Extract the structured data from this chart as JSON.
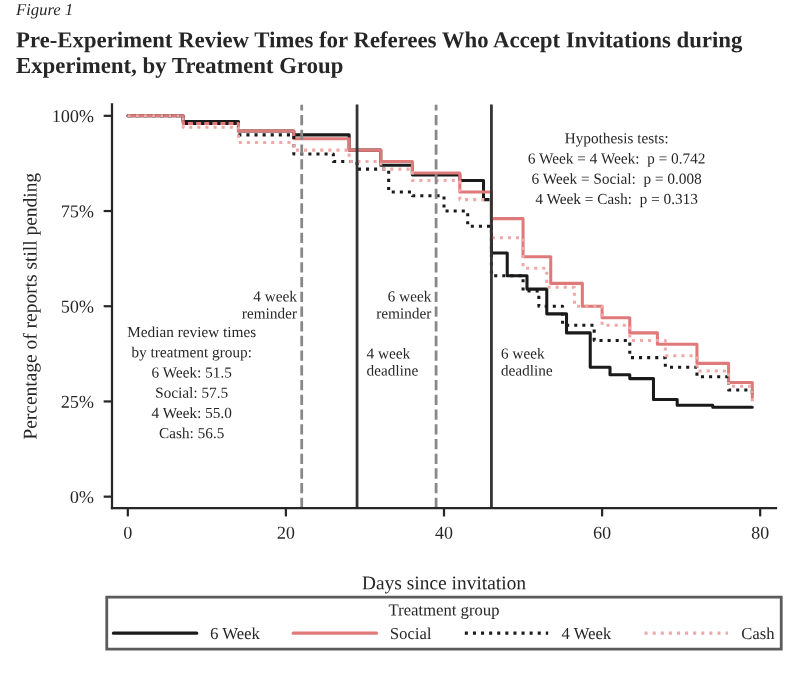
{
  "chart_data": {
    "type": "step",
    "title": "Pre-Experiment Review Times for Referees Who Accept Invitations during\nExperiment, by Treatment Group",
    "xlabel": "Days since invitation",
    "ylabel": "Percentage of reports still pending",
    "legend_title": "Treatment group",
    "annotations": [
      "Figure 1",
      "Hypothesis tests:\n6 Week = 4 Week:  p = 0.742\n6 Week = Social:  p = 0.008\n4 Week = Cash:  p = 0.313",
      "Median review times\nby treatment group:\n6 Week: 51.5\nSocial: 57.5\n4 Week: 55.0\nCash: 56.5"
    ],
    "series": [
      {
        "name": "6 Week",
        "color": "#1a1a1a",
        "line_style": "solid",
        "x": [
          0,
          7,
          14,
          21,
          28,
          32,
          36,
          42,
          45,
          46,
          48,
          50.5,
          53,
          55.5,
          58.5,
          61,
          63.5,
          66.5,
          69.5,
          74,
          79
        ],
        "values": [
          100,
          98.5,
          96,
          95,
          91,
          87,
          84.5,
          83,
          78,
          64,
          58,
          54.5,
          48,
          43,
          34,
          32,
          31,
          25.5,
          24,
          23.5,
          23.5
        ]
      },
      {
        "name": "Social",
        "color": "#e07a7a",
        "line_style": "solid",
        "x": [
          0,
          7,
          14,
          21,
          28,
          32,
          36,
          42,
          46,
          50,
          53.5,
          57.5,
          60,
          63.5,
          67,
          72,
          76,
          79
        ],
        "values": [
          100,
          98,
          96,
          94,
          91,
          88,
          85,
          80,
          73,
          63,
          56,
          50,
          47,
          43,
          40,
          35,
          30,
          26
        ]
      },
      {
        "name": "4 Week",
        "color": "#1a1a1a",
        "line_style": "dotted",
        "x": [
          0,
          7,
          14,
          21,
          26,
          29,
          33,
          36,
          40,
          43,
          46,
          50,
          52,
          55,
          59,
          63.5,
          68,
          72,
          76,
          79
        ],
        "values": [
          100,
          98,
          95,
          90,
          88,
          86,
          80,
          79,
          75,
          71,
          58,
          54,
          50,
          45,
          41,
          36.5,
          34,
          31.5,
          28,
          26
        ]
      },
      {
        "name": "Cash",
        "color": "#f0a8a8",
        "line_style": "dotted",
        "x": [
          0,
          7,
          14,
          21,
          28,
          32,
          36,
          42,
          46,
          50,
          53,
          56.5,
          60,
          63.5,
          68,
          72,
          76,
          79
        ],
        "values": [
          100,
          97,
          93,
          91,
          88,
          86,
          83,
          78,
          68,
          60,
          55,
          50,
          45,
          41,
          37,
          33,
          29,
          25
        ]
      }
    ],
    "ref_lines": [
      {
        "axis": "x",
        "value": 22,
        "label": "4 week\nreminder",
        "line_style": "dashed",
        "color": "#888888"
      },
      {
        "axis": "x",
        "value": 29,
        "label": "4 week\ndeadline",
        "line_style": "solid",
        "color": "#333333"
      },
      {
        "axis": "x",
        "value": 39,
        "label": "6 week\nreminder",
        "line_style": "dashed",
        "color": "#888888"
      },
      {
        "axis": "x",
        "value": 46,
        "label": "6 week\ndeadline",
        "line_style": "solid",
        "color": "#333333"
      }
    ],
    "xlim": [
      -2,
      82
    ],
    "ylim": [
      -3,
      103
    ],
    "xticks": [
      0,
      20,
      40,
      60,
      80
    ],
    "yticks": [
      {
        "value": 0,
        "label": "0%"
      },
      {
        "value": 25,
        "label": "25%"
      },
      {
        "value": 50,
        "label": "50%"
      },
      {
        "value": 75,
        "label": "75%"
      },
      {
        "value": 100,
        "label": "100%"
      }
    ],
    "grid": false,
    "legend": "bottom"
  }
}
